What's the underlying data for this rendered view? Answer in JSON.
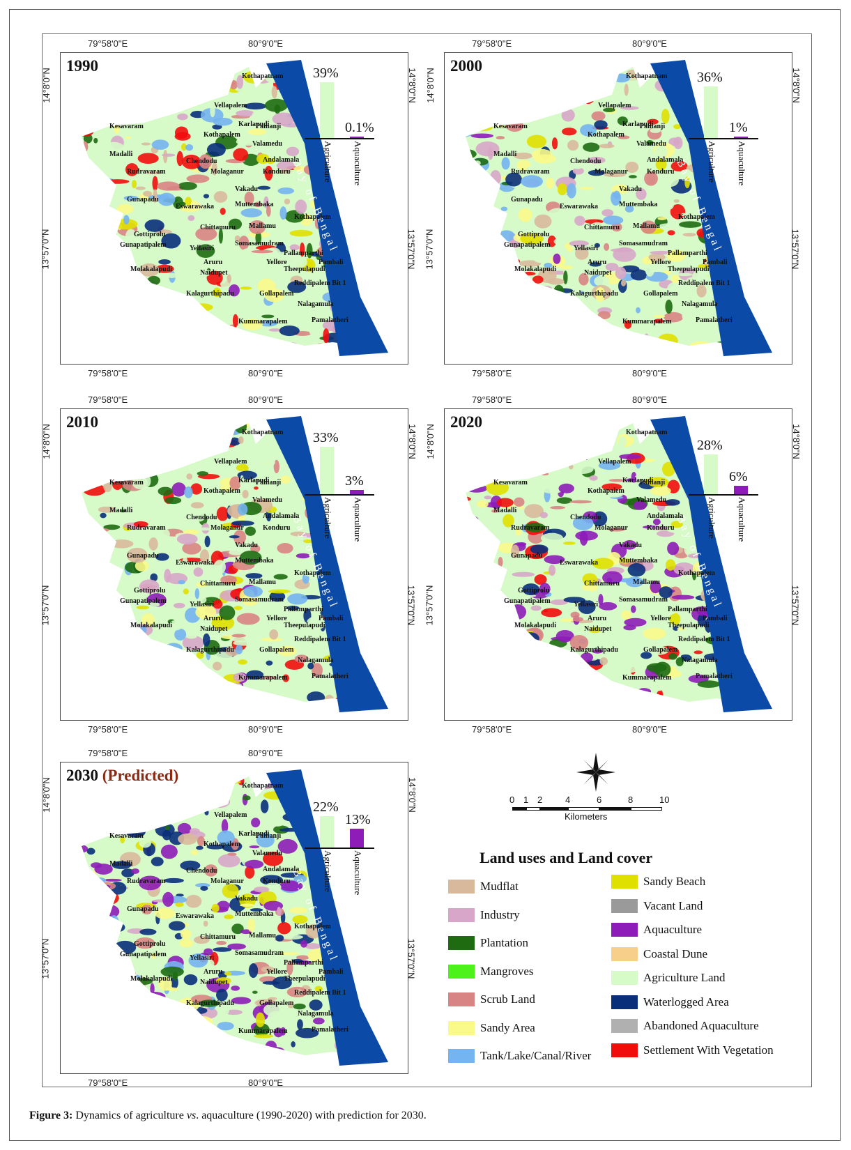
{
  "caption": {
    "label": "Figure 3:",
    "text_prefix": " Dynamics of agriculture ",
    "text_vs": "vs",
    "text_suffix": ". aquaculture (1990-2020) with prediction for 2030."
  },
  "coords": {
    "lon_a": "79°58'0\"E",
    "lon_b": "80°9'0\"E",
    "lat_top": "14°8'0\"N",
    "lat_bottom": "13°57'0\"N"
  },
  "sea_label": "Bay of Bengal",
  "bar_labels": {
    "agriculture": "Agriculture",
    "aquaculture": "Aquaculture"
  },
  "panels": [
    {
      "year": "1990",
      "predicted": "",
      "agriculture_pct": 39,
      "aquaculture_pct": 0.1,
      "agri_label": "39%",
      "aqua_label": "0.1%"
    },
    {
      "year": "2000",
      "predicted": "",
      "agriculture_pct": 36,
      "aquaculture_pct": 1,
      "agri_label": "36%",
      "aqua_label": "1%"
    },
    {
      "year": "2010",
      "predicted": "",
      "agriculture_pct": 33,
      "aquaculture_pct": 3,
      "agri_label": "33%",
      "aqua_label": "3%"
    },
    {
      "year": "2020",
      "predicted": "",
      "agriculture_pct": 28,
      "aquaculture_pct": 6,
      "agri_label": "28%",
      "aqua_label": "6%"
    },
    {
      "year": "2030",
      "predicted": "(Predicted)",
      "agriculture_pct": 22,
      "aquaculture_pct": 13,
      "agri_label": "22%",
      "aqua_label": "13%"
    }
  ],
  "places": [
    "Kothapatnam",
    "Vellapalem",
    "Karlapudi",
    "Pamanji",
    "Kesavaram",
    "Kothapalem",
    "Valamedu",
    "Madalli",
    "Chendodu",
    "Andalamala",
    "Rudravaram",
    "Molaganur",
    "Konduru",
    "Vakadu",
    "Gunapadu",
    "Eswarawaka",
    "Muttembaka",
    "Kothapalem",
    "Chittamuru",
    "Mallamu",
    "Gottiprolu",
    "Somasamudram",
    "Gunapatipalem",
    "Yellasiri",
    "Pallamparthi",
    "Aruru",
    "Yellore",
    "Pambali",
    "Molakalapudi",
    "Naidupet",
    "Theepulapudi",
    "Reddipalem Bit 1",
    "Kalagurthipadu",
    "Gollapalem",
    "Nalagamula",
    "Kummarapalem",
    "Pamalatheri"
  ],
  "scale": {
    "ticks": [
      "0",
      "1",
      "2",
      "4",
      "6",
      "8",
      "10"
    ],
    "unit": "Kilometers"
  },
  "legend": {
    "title": "Land uses and Land cover",
    "items": [
      {
        "label": "Mudflat",
        "color": "#d9b99b"
      },
      {
        "label": "Industry",
        "color": "#d8a6c8"
      },
      {
        "label": "Plantation",
        "color": "#1e6b12"
      },
      {
        "label": "Mangroves",
        "color": "#4cf21a"
      },
      {
        "label": "Scrub Land",
        "color": "#d98484"
      },
      {
        "label": "Sandy Area",
        "color": "#fafa8a"
      },
      {
        "label": "Tank/Lake/Canal/River",
        "color": "#74b4f0"
      },
      {
        "label": "Sandy Beach",
        "color": "#e0e000"
      },
      {
        "label": "Vacant Land",
        "color": "#9a9a9a"
      },
      {
        "label": "Aquaculture",
        "color": "#8e1cb8"
      },
      {
        "label": "Coastal Dune",
        "color": "#f8cf8a"
      },
      {
        "label": "Agriculture Land",
        "color": "#d6fac8"
      },
      {
        "label": "Waterlogged Area",
        "color": "#0a2f7a"
      },
      {
        "label": "Abandoned Aquaculture",
        "color": "#b0b0b0"
      },
      {
        "label": "Settlement With Vegetation",
        "color": "#f20d0d"
      }
    ]
  },
  "colors": {
    "sea": "#0b4aa6",
    "agri_bar": "#d6fac8",
    "aqua_bar": "#8e1cb8"
  }
}
